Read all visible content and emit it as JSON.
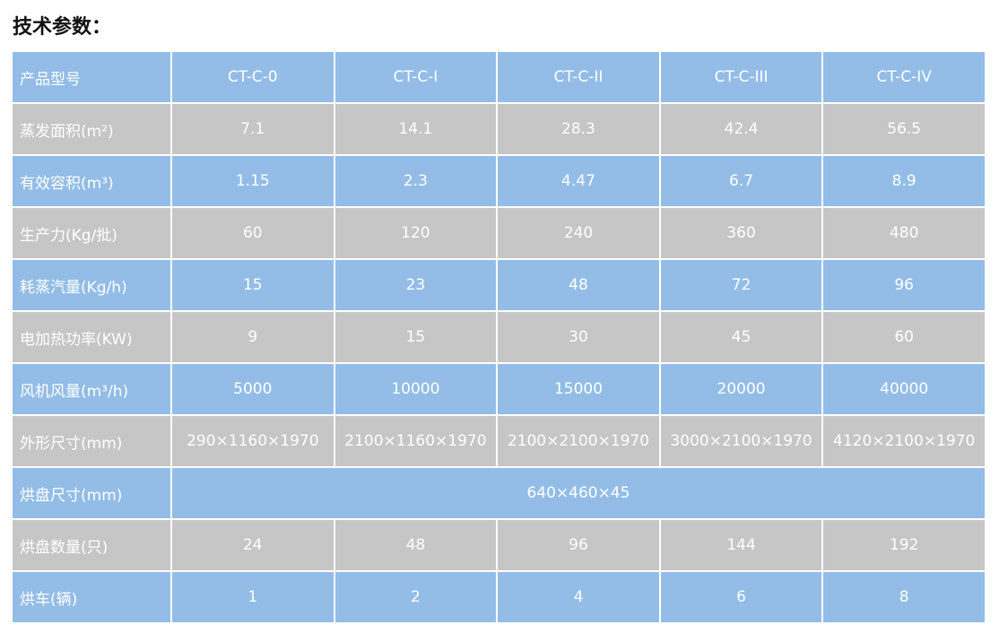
{
  "title": "技术参数：",
  "table": {
    "header": [
      "产品型号",
      "CT-C-0",
      "CT-C-I",
      "CT-C-II",
      "CT-C-III",
      "CT-C-IV"
    ],
    "rows": [
      [
        "蒸发面积(m²)",
        "7.1",
        "14.1",
        "28.3",
        "42.4",
        "56.5"
      ],
      [
        "有效容积(m³)",
        "1.15",
        "2.3",
        "4.47",
        "6.7",
        "8.9"
      ],
      [
        "生产力(Kg/批)",
        "60",
        "120",
        "240",
        "360",
        "480"
      ],
      [
        "耗蒸汽量(Kg/h)",
        "15",
        "23",
        "48",
        "72",
        "96"
      ],
      [
        "电加热功率(KW)",
        "9",
        "15",
        "30",
        "45",
        "60"
      ],
      [
        "风机风量(m³/h)",
        "5000",
        "10000",
        "15000",
        "20000",
        "40000"
      ],
      [
        "外形尺寸(mm)",
        "290×1160×1970",
        "2100×1160×1970",
        "2100×2100×1970",
        "3000×2100×1970",
        "4120×2100×1970"
      ],
      [
        "烘盘尺寸(mm)",
        "640×460×45"
      ],
      [
        "烘盘数量(只)",
        "24",
        "48",
        "96",
        "144",
        "192"
      ],
      [
        "烘车(辆)",
        "1",
        "2",
        "4",
        "6",
        "8"
      ]
    ]
  }
}
